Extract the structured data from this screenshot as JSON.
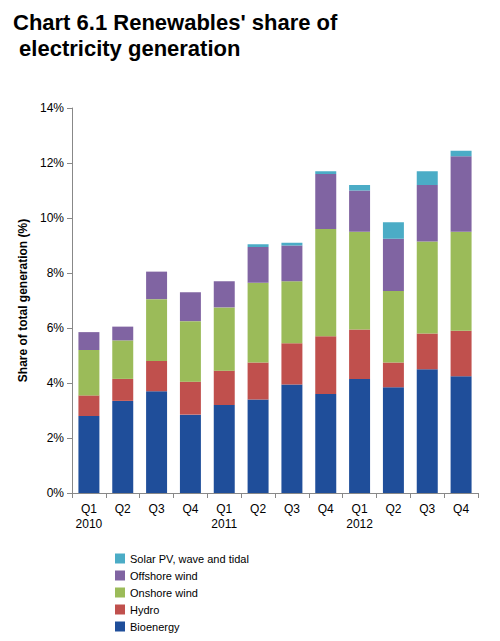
{
  "chart_data": {
    "type": "bar",
    "title": "Chart 6.1 Renewables' share of electricity generation",
    "y_label": "Share of total generation (%)",
    "categories": [
      "Q1\n2010",
      "Q2",
      "Q3",
      "Q4",
      "Q1\n2011",
      "Q2",
      "Q3",
      "Q4",
      "Q1\n2012",
      "Q2",
      "Q3",
      "Q4"
    ],
    "stacked": true,
    "grid": false,
    "legend": "bottom",
    "ylim": [
      0,
      14
    ],
    "yticks": [
      {
        "value": 0,
        "label": "0%"
      },
      {
        "value": 2,
        "label": "2%"
      },
      {
        "value": 4,
        "label": "4%"
      },
      {
        "value": 6,
        "label": "6%"
      },
      {
        "value": 8,
        "label": "8%"
      },
      {
        "value": 10,
        "label": "10%"
      },
      {
        "value": 12,
        "label": "12%"
      },
      {
        "value": 14,
        "label": "14%"
      }
    ],
    "series": [
      {
        "name": "Bioenergy",
        "color": "#1F4E9A",
        "values": [
          2.8,
          3.35,
          3.7,
          2.85,
          3.2,
          3.4,
          3.95,
          3.6,
          4.15,
          3.85,
          4.5,
          4.25
        ]
      },
      {
        "name": "Hydro",
        "color": "#C0504D",
        "values": [
          0.75,
          0.8,
          1.1,
          1.2,
          1.25,
          1.35,
          1.5,
          2.1,
          1.8,
          0.9,
          1.3,
          1.65
        ]
      },
      {
        "name": "Onshore wind",
        "color": "#9BBB59",
        "values": [
          1.65,
          1.4,
          2.25,
          2.2,
          2.3,
          2.9,
          2.25,
          3.9,
          3.55,
          2.6,
          3.35,
          3.6
        ]
      },
      {
        "name": "Offshore wind",
        "color": "#8064A2",
        "values": [
          0.65,
          0.5,
          1.0,
          1.05,
          0.95,
          1.3,
          1.3,
          2.0,
          1.5,
          1.9,
          2.05,
          2.75
        ]
      },
      {
        "name": "Solar PV, wave and tidal",
        "color": "#4BACC6",
        "values": [
          0,
          0,
          0,
          0,
          0,
          0.1,
          0.1,
          0.1,
          0.2,
          0.6,
          0.5,
          0.2
        ]
      }
    ]
  }
}
